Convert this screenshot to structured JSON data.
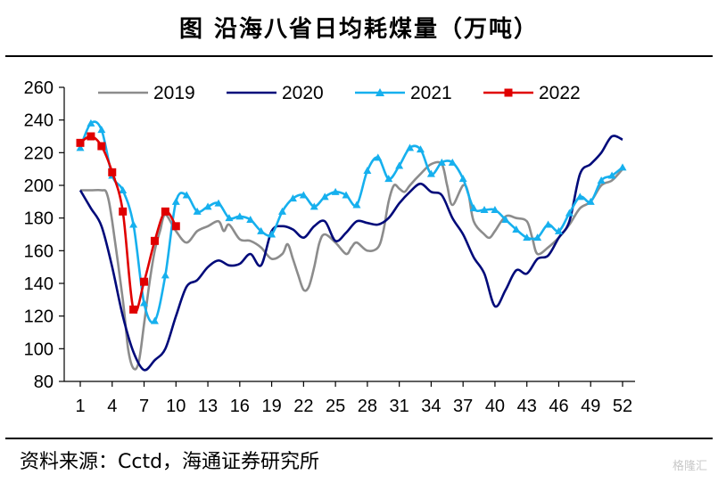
{
  "title": "图  沿海八省日均耗煤量（万吨）",
  "source": "资料来源：Cctd，海通证券研究所",
  "watermark": "格隆汇",
  "chart_data": {
    "type": "line",
    "title": "图  沿海八省日均耗煤量（万吨）",
    "unit": "万吨",
    "xlabel": "",
    "ylabel": "",
    "xlim": [
      1,
      52
    ],
    "ylim": [
      80,
      260
    ],
    "yticks": [
      80,
      100,
      120,
      140,
      160,
      180,
      200,
      220,
      240,
      260
    ],
    "xticks": [
      1,
      4,
      7,
      10,
      13,
      16,
      19,
      22,
      25,
      28,
      31,
      34,
      37,
      40,
      43,
      46,
      49,
      52
    ],
    "grid": false,
    "legend": "top",
    "series": [
      {
        "name": "2019",
        "color": "#8c8c8c",
        "marker": "none",
        "points": [
          [
            1,
            197
          ],
          [
            2,
            197
          ],
          [
            3,
            197
          ],
          [
            3.5,
            195
          ],
          [
            4,
            178
          ],
          [
            5,
            130
          ],
          [
            5.5,
            100
          ],
          [
            6,
            88
          ],
          [
            6.5,
            92
          ],
          [
            7,
            115
          ],
          [
            7.5,
            140
          ],
          [
            8,
            160
          ],
          [
            8.5,
            172
          ],
          [
            9,
            182
          ],
          [
            10,
            172
          ],
          [
            11,
            165
          ],
          [
            12,
            172
          ],
          [
            13,
            175
          ],
          [
            14,
            178
          ],
          [
            14.5,
            172
          ],
          [
            15,
            176
          ],
          [
            16,
            167
          ],
          [
            17,
            166
          ],
          [
            18,
            162
          ],
          [
            19,
            155
          ],
          [
            20,
            158
          ],
          [
            20.5,
            164
          ],
          [
            21,
            155
          ],
          [
            21.5,
            145
          ],
          [
            22,
            136
          ],
          [
            22.5,
            138
          ],
          [
            23,
            150
          ],
          [
            23.5,
            165
          ],
          [
            24,
            170
          ],
          [
            25,
            165
          ],
          [
            26,
            158
          ],
          [
            26.5,
            162
          ],
          [
            27,
            165
          ],
          [
            28,
            160
          ],
          [
            29,
            162
          ],
          [
            29.5,
            172
          ],
          [
            30,
            190
          ],
          [
            30.5,
            200
          ],
          [
            31,
            198
          ],
          [
            31.5,
            196
          ],
          [
            32,
            200
          ],
          [
            33,
            207
          ],
          [
            34,
            213
          ],
          [
            35,
            213
          ],
          [
            35.5,
            200
          ],
          [
            36,
            188
          ],
          [
            37,
            200
          ],
          [
            37.5,
            195
          ],
          [
            38,
            178
          ],
          [
            39,
            170
          ],
          [
            39.5,
            168
          ],
          [
            40,
            172
          ],
          [
            41,
            181
          ],
          [
            42,
            180
          ],
          [
            43,
            178
          ],
          [
            43.5,
            168
          ],
          [
            44,
            158
          ],
          [
            45,
            162
          ],
          [
            46,
            168
          ],
          [
            47,
            176
          ],
          [
            48,
            186
          ],
          [
            49,
            190
          ],
          [
            50,
            200
          ],
          [
            51,
            203
          ],
          [
            52,
            210
          ]
        ]
      },
      {
        "name": "2020",
        "color": "#000a7a",
        "marker": "none",
        "points": [
          [
            1,
            197
          ],
          [
            2,
            186
          ],
          [
            3,
            175
          ],
          [
            4,
            150
          ],
          [
            5,
            120
          ],
          [
            6,
            98
          ],
          [
            7,
            87
          ],
          [
            8,
            93
          ],
          [
            9,
            100
          ],
          [
            10,
            120
          ],
          [
            11,
            138
          ],
          [
            12,
            142
          ],
          [
            13,
            150
          ],
          [
            14,
            154
          ],
          [
            15,
            151
          ],
          [
            16,
            152
          ],
          [
            17,
            158
          ],
          [
            18,
            151
          ],
          [
            19,
            172
          ],
          [
            20,
            175
          ],
          [
            21,
            173
          ],
          [
            22,
            168
          ],
          [
            23,
            175
          ],
          [
            24,
            178
          ],
          [
            25,
            166
          ],
          [
            26,
            171
          ],
          [
            27,
            178
          ],
          [
            28,
            177
          ],
          [
            29,
            176
          ],
          [
            30,
            180
          ],
          [
            31,
            189
          ],
          [
            32,
            196
          ],
          [
            33,
            201
          ],
          [
            34,
            196
          ],
          [
            35,
            194
          ],
          [
            36,
            180
          ],
          [
            37,
            170
          ],
          [
            38,
            156
          ],
          [
            39,
            146
          ],
          [
            40,
            126
          ],
          [
            41,
            136
          ],
          [
            42,
            148
          ],
          [
            43,
            146
          ],
          [
            44,
            155
          ],
          [
            45,
            157
          ],
          [
            46,
            168
          ],
          [
            47,
            178
          ],
          [
            48,
            207
          ],
          [
            49,
            213
          ],
          [
            50,
            220
          ],
          [
            51,
            230
          ],
          [
            52,
            228
          ]
        ]
      },
      {
        "name": "2021",
        "color": "#16b0ee",
        "marker": "triangle",
        "points": [
          [
            1,
            223
          ],
          [
            2,
            238
          ],
          [
            3,
            234
          ],
          [
            4,
            206
          ],
          [
            5,
            197
          ],
          [
            6,
            176
          ],
          [
            7,
            128
          ],
          [
            8,
            117
          ],
          [
            9,
            145
          ],
          [
            10,
            190
          ],
          [
            11,
            194
          ],
          [
            12,
            184
          ],
          [
            13,
            187
          ],
          [
            14,
            189
          ],
          [
            15,
            180
          ],
          [
            16,
            181
          ],
          [
            17,
            179
          ],
          [
            18,
            172
          ],
          [
            19,
            170
          ],
          [
            20,
            184
          ],
          [
            21,
            192
          ],
          [
            22,
            194
          ],
          [
            23,
            187
          ],
          [
            24,
            193
          ],
          [
            25,
            196
          ],
          [
            26,
            194
          ],
          [
            27,
            188
          ],
          [
            28,
            209
          ],
          [
            29,
            217
          ],
          [
            30,
            204
          ],
          [
            31,
            212
          ],
          [
            32,
            223
          ],
          [
            33,
            222
          ],
          [
            34,
            207
          ],
          [
            35,
            214
          ],
          [
            36,
            214
          ],
          [
            37,
            204
          ],
          [
            38,
            186
          ],
          [
            39,
            185
          ],
          [
            40,
            185
          ],
          [
            41,
            179
          ],
          [
            42,
            173
          ],
          [
            43,
            168
          ],
          [
            44,
            168
          ],
          [
            45,
            176
          ],
          [
            46,
            172
          ],
          [
            47,
            183
          ],
          [
            48,
            193
          ],
          [
            49,
            190
          ],
          [
            50,
            203
          ],
          [
            51,
            206
          ],
          [
            52,
            211
          ]
        ]
      },
      {
        "name": "2022",
        "color": "#e00000",
        "marker": "square",
        "points": [
          [
            1,
            226
          ],
          [
            2,
            230
          ],
          [
            3,
            224
          ],
          [
            4,
            208
          ],
          [
            5,
            184
          ],
          [
            6,
            124
          ],
          [
            7,
            141
          ],
          [
            8,
            166
          ],
          [
            9,
            184
          ],
          [
            10,
            175
          ]
        ]
      }
    ]
  }
}
